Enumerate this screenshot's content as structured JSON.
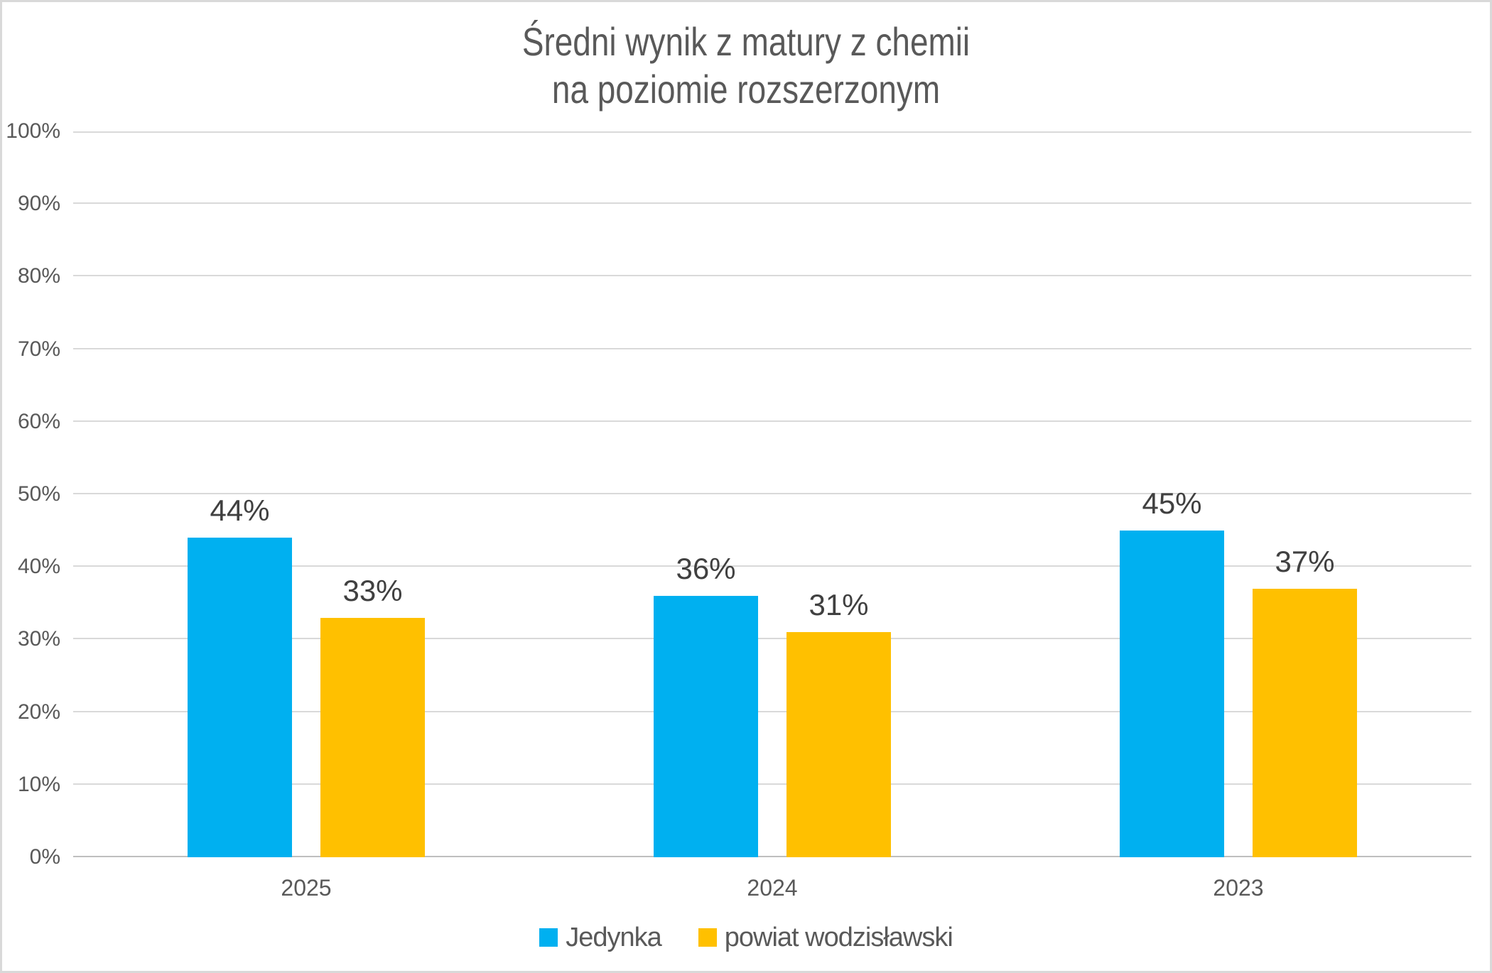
{
  "chart_data": {
    "type": "bar",
    "title_lines": [
      "Średni wynik z matury z chemii",
      "na poziomie rozszerzonym"
    ],
    "categories": [
      "2025",
      "2024",
      "2023"
    ],
    "series": [
      {
        "name": "Jedynka",
        "color": "#00B0F0",
        "values": [
          44,
          36,
          45
        ],
        "data_labels": [
          "44%",
          "36%",
          "45%"
        ]
      },
      {
        "name": "powiat wodzisławski",
        "color": "#FFC000",
        "values": [
          33,
          31,
          37
        ],
        "data_labels": [
          "33%",
          "31%",
          "37%"
        ]
      }
    ],
    "y_axis": {
      "min": 0,
      "max": 100,
      "step": 10,
      "tick_labels": [
        "0%",
        "10%",
        "20%",
        "30%",
        "40%",
        "50%",
        "60%",
        "70%",
        "80%",
        "90%",
        "100%"
      ]
    },
    "x_axis_label": "",
    "y_axis_label": "",
    "grid": true,
    "legend_position": "bottom",
    "colors": {
      "background": "#FFFFFF",
      "border": "#D9D9D9",
      "gridline": "#D9D9D9",
      "axis_line": "#BFBFBF",
      "title_text": "#595959",
      "tick_text": "#595959",
      "data_label_text": "#404040",
      "legend_text": "#595959"
    }
  }
}
